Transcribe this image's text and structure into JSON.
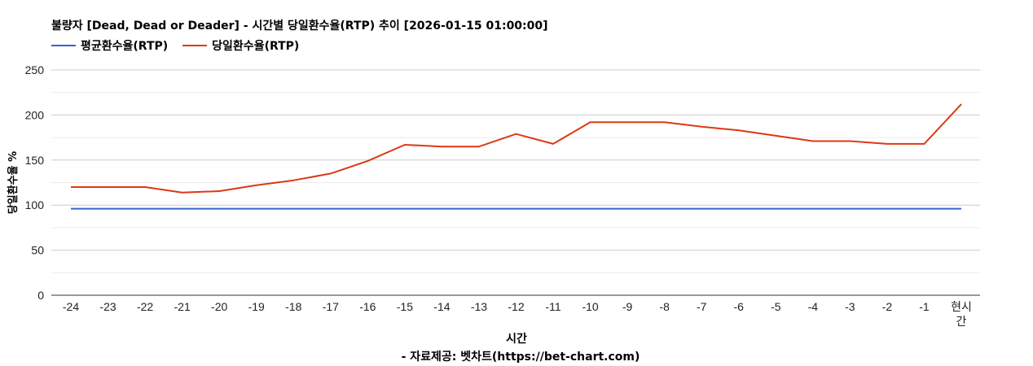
{
  "chart_data": {
    "type": "line",
    "title": "불량자 [Dead, Dead or Deader] - 시간별 당일환수율(RTP) 추이 [2026-01-15 01:00:00]",
    "xlabel": "시간",
    "ylabel": "당일환수율 %",
    "source": "- 자료제공: 벳차트(https://bet-chart.com)",
    "ylim": [
      0,
      250
    ],
    "yticks": [
      0,
      50,
      100,
      150,
      200,
      250
    ],
    "grid": true,
    "legend_position": "top-left",
    "categories": [
      "-24",
      "-23",
      "-22",
      "-21",
      "-20",
      "-19",
      "-18",
      "-17",
      "-16",
      "-15",
      "-14",
      "-13",
      "-12",
      "-11",
      "-10",
      "-9",
      "-8",
      "-7",
      "-6",
      "-5",
      "-4",
      "-3",
      "-2",
      "-1",
      "현시간"
    ],
    "series": [
      {
        "name": "평균환수율(RTP)",
        "color": "#3366cc",
        "values": [
          96,
          96,
          96,
          96,
          96,
          96,
          96,
          96,
          96,
          96,
          96,
          96,
          96,
          96,
          96,
          96,
          96,
          96,
          96,
          96,
          96,
          96,
          96,
          96,
          96
        ]
      },
      {
        "name": "당일환수율(RTP)",
        "color": "#dc3912",
        "values": [
          120,
          120,
          120,
          114,
          115.5,
          122,
          127.5,
          135,
          149,
          167,
          165,
          165,
          179,
          168,
          192,
          192,
          192,
          187,
          183,
          177,
          171,
          171,
          168,
          168,
          212
        ]
      }
    ]
  },
  "legend": {
    "avg_label": "평균환수율(RTP)",
    "daily_label": "당일환수율(RTP)"
  }
}
